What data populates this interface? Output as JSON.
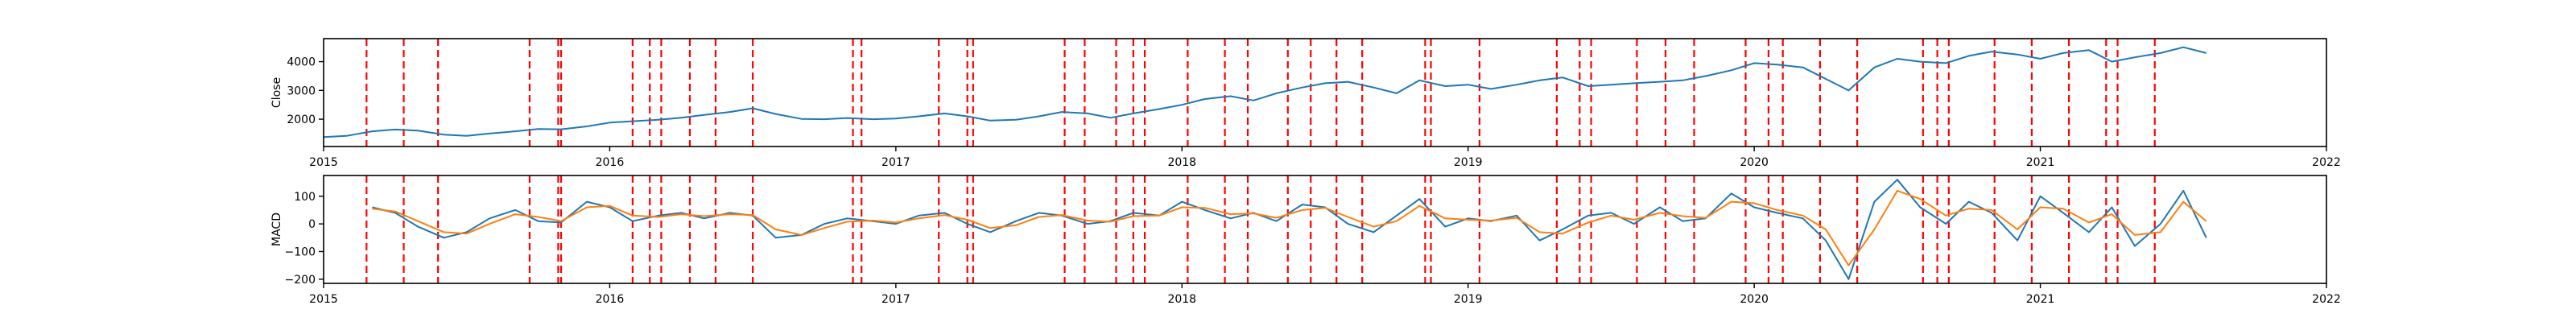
{
  "chart_data": [
    {
      "type": "line",
      "title": "",
      "xlabel": "",
      "ylabel": "Close",
      "xlim": [
        2015.0,
        2022.0
      ],
      "ylim": [
        1050,
        4800
      ],
      "x_ticks": [
        2015,
        2016,
        2017,
        2018,
        2019,
        2020,
        2021,
        2022
      ],
      "x_tick_labels": [
        "2015",
        "2016",
        "2017",
        "2018",
        "2019",
        "2020",
        "2021",
        "2022"
      ],
      "y_ticks": [
        2000,
        3000,
        4000
      ],
      "y_tick_labels": [
        "2000",
        "3000",
        "4000"
      ],
      "grid": false,
      "legend": "none",
      "series": [
        {
          "color": "#1f77b4",
          "x": [
            2015.0,
            2015.08,
            2015.17,
            2015.25,
            2015.33,
            2015.42,
            2015.5,
            2015.58,
            2015.67,
            2015.75,
            2015.83,
            2015.92,
            2016.0,
            2016.08,
            2016.17,
            2016.25,
            2016.33,
            2016.42,
            2016.5,
            2016.58,
            2016.67,
            2016.75,
            2016.83,
            2016.92,
            2017.0,
            2017.08,
            2017.17,
            2017.25,
            2017.33,
            2017.42,
            2017.5,
            2017.58,
            2017.67,
            2017.75,
            2017.83,
            2017.92,
            2018.0,
            2018.08,
            2018.17,
            2018.25,
            2018.33,
            2018.42,
            2018.5,
            2018.58,
            2018.67,
            2018.75,
            2018.83,
            2018.92,
            2019.0,
            2019.08,
            2019.17,
            2019.25,
            2019.33,
            2019.42,
            2019.5,
            2019.58,
            2019.67,
            2019.75,
            2019.83,
            2019.92,
            2020.0,
            2020.08,
            2020.17,
            2020.25,
            2020.33,
            2020.42,
            2020.5,
            2020.58,
            2020.67,
            2020.75,
            2020.83,
            2020.92,
            2021.0,
            2021.08,
            2021.17,
            2021.25,
            2021.33,
            2021.42,
            2021.5,
            2021.58
          ],
          "y": [
            1380,
            1420,
            1580,
            1640,
            1600,
            1460,
            1420,
            1500,
            1580,
            1660,
            1650,
            1750,
            1880,
            1930,
            1980,
            2050,
            2150,
            2250,
            2380,
            2180,
            2010,
            2000,
            2040,
            2000,
            2020,
            2100,
            2200,
            2100,
            1950,
            1980,
            2100,
            2250,
            2200,
            2050,
            2200,
            2350,
            2500,
            2700,
            2800,
            2650,
            2900,
            3100,
            3250,
            3300,
            3100,
            2900,
            3350,
            3150,
            3200,
            3050,
            3200,
            3350,
            3450,
            3150,
            3200,
            3250,
            3300,
            3350,
            3500,
            3700,
            3950,
            3900,
            3800,
            3400,
            3000,
            3800,
            4100,
            4000,
            3950,
            4200,
            4350,
            4250,
            4100,
            4300,
            4400,
            4000,
            4150,
            4300,
            4500,
            4300
          ]
        }
      ]
    },
    {
      "type": "line",
      "title": "",
      "xlabel": "",
      "ylabel": "MACD",
      "xlim": [
        2015.0,
        2022.0
      ],
      "ylim": [
        -215,
        175
      ],
      "x_ticks": [
        2015,
        2016,
        2017,
        2018,
        2019,
        2020,
        2021,
        2022
      ],
      "x_tick_labels": [
        "2015",
        "2016",
        "2017",
        "2018",
        "2019",
        "2020",
        "2021",
        "2022"
      ],
      "y_ticks": [
        -200,
        -100,
        0,
        100
      ],
      "y_tick_labels": [
        "−200",
        "−100",
        "0",
        "100"
      ],
      "grid": false,
      "legend": "none",
      "series": [
        {
          "color": "#1f77b4",
          "x": [
            2015.17,
            2015.25,
            2015.33,
            2015.42,
            2015.5,
            2015.58,
            2015.67,
            2015.75,
            2015.83,
            2015.92,
            2016.0,
            2016.08,
            2016.17,
            2016.25,
            2016.33,
            2016.42,
            2016.5,
            2016.58,
            2016.67,
            2016.75,
            2016.83,
            2016.92,
            2017.0,
            2017.08,
            2017.17,
            2017.25,
            2017.33,
            2017.42,
            2017.5,
            2017.58,
            2017.67,
            2017.75,
            2017.83,
            2017.92,
            2018.0,
            2018.08,
            2018.17,
            2018.25,
            2018.33,
            2018.42,
            2018.5,
            2018.58,
            2018.67,
            2018.75,
            2018.83,
            2018.92,
            2019.0,
            2019.08,
            2019.17,
            2019.25,
            2019.33,
            2019.42,
            2019.5,
            2019.58,
            2019.67,
            2019.75,
            2019.83,
            2019.92,
            2020.0,
            2020.08,
            2020.17,
            2020.25,
            2020.33,
            2020.42,
            2020.5,
            2020.58,
            2020.67,
            2020.75,
            2020.83,
            2020.92,
            2021.0,
            2021.08,
            2021.17,
            2021.25,
            2021.33,
            2021.42,
            2021.5,
            2021.58
          ],
          "y": [
            60,
            40,
            -10,
            -50,
            -30,
            20,
            50,
            10,
            5,
            80,
            60,
            10,
            30,
            40,
            20,
            40,
            30,
            -50,
            -40,
            0,
            20,
            10,
            0,
            30,
            40,
            0,
            -30,
            10,
            40,
            30,
            0,
            10,
            40,
            30,
            80,
            50,
            20,
            40,
            10,
            70,
            60,
            0,
            -30,
            30,
            90,
            -10,
            20,
            10,
            30,
            -60,
            -20,
            30,
            40,
            0,
            60,
            10,
            20,
            110,
            60,
            40,
            20,
            -60,
            -200,
            80,
            160,
            60,
            0,
            80,
            40,
            -60,
            100,
            40,
            -30,
            60,
            -80,
            0,
            120,
            -50
          ]
        },
        {
          "color": "#ff7f0e",
          "x": [
            2015.17,
            2015.25,
            2015.33,
            2015.42,
            2015.5,
            2015.58,
            2015.67,
            2015.75,
            2015.83,
            2015.92,
            2016.0,
            2016.08,
            2016.17,
            2016.25,
            2016.33,
            2016.42,
            2016.5,
            2016.58,
            2016.67,
            2016.75,
            2016.83,
            2016.92,
            2017.0,
            2017.08,
            2017.17,
            2017.25,
            2017.33,
            2017.42,
            2017.5,
            2017.58,
            2017.67,
            2017.75,
            2017.83,
            2017.92,
            2018.0,
            2018.08,
            2018.17,
            2018.25,
            2018.33,
            2018.42,
            2018.5,
            2018.58,
            2018.67,
            2018.75,
            2018.83,
            2018.92,
            2019.0,
            2019.08,
            2019.17,
            2019.25,
            2019.33,
            2019.42,
            2019.5,
            2019.58,
            2019.67,
            2019.75,
            2019.83,
            2019.92,
            2020.0,
            2020.08,
            2020.17,
            2020.25,
            2020.33,
            2020.42,
            2020.5,
            2020.58,
            2020.67,
            2020.75,
            2020.83,
            2020.92,
            2021.0,
            2021.08,
            2021.17,
            2021.25,
            2021.33,
            2021.42,
            2021.5,
            2021.58
          ],
          "y": [
            55,
            45,
            10,
            -30,
            -35,
            0,
            35,
            25,
            10,
            60,
            65,
            30,
            25,
            35,
            28,
            35,
            32,
            -20,
            -40,
            -15,
            8,
            12,
            5,
            20,
            32,
            15,
            -15,
            -5,
            25,
            32,
            12,
            8,
            28,
            30,
            60,
            58,
            35,
            38,
            22,
            50,
            58,
            25,
            -10,
            10,
            65,
            20,
            15,
            12,
            22,
            -30,
            -35,
            5,
            30,
            15,
            40,
            28,
            22,
            80,
            75,
            50,
            30,
            -20,
            -150,
            -20,
            120,
            90,
            30,
            55,
            50,
            -20,
            60,
            55,
            5,
            35,
            -40,
            -30,
            80,
            10
          ]
        }
      ]
    }
  ],
  "event_lines": {
    "color": "#ff0000",
    "x": [
      2015.15,
      2015.28,
      2015.4,
      2015.72,
      2015.82,
      2015.83,
      2016.08,
      2016.14,
      2016.18,
      2016.28,
      2016.37,
      2016.5,
      2016.85,
      2016.88,
      2017.15,
      2017.25,
      2017.27,
      2017.59,
      2017.66,
      2017.77,
      2017.83,
      2017.87,
      2018.02,
      2018.15,
      2018.23,
      2018.37,
      2018.45,
      2018.54,
      2018.63,
      2018.85,
      2018.87,
      2019.04,
      2019.31,
      2019.39,
      2019.43,
      2019.59,
      2019.69,
      2019.79,
      2019.97,
      2020.05,
      2020.1,
      2020.23,
      2020.36,
      2020.59,
      2020.64,
      2020.68,
      2020.84,
      2020.97,
      2021.1,
      2021.23,
      2021.27,
      2021.4
    ]
  }
}
